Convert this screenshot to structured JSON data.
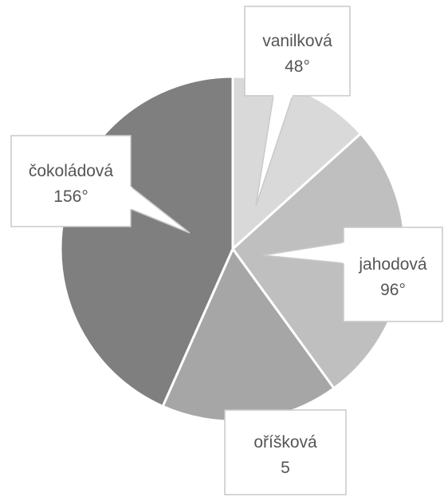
{
  "chart_data": {
    "type": "pie",
    "title": "",
    "slices": [
      {
        "category": "vanilková",
        "value_label": "48°",
        "degrees": 48,
        "color": "#d9d9d9"
      },
      {
        "category": "jahodová",
        "value_label": "96°",
        "degrees": 96,
        "color": "#bfbfbf"
      },
      {
        "category": "oříšková",
        "value_label": "5",
        "degrees": 60,
        "color": "#a6a6a6"
      },
      {
        "category": "čokoládová",
        "value_label": "156°",
        "degrees": 156,
        "color": "#7f7f7f"
      }
    ],
    "legend": "none",
    "data_labels": "callouts"
  }
}
